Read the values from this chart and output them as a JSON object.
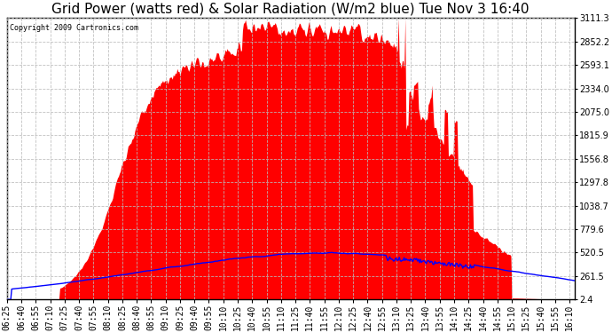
{
  "title": "Grid Power (watts red) & Solar Radiation (W/m2 blue) Tue Nov 3 16:40",
  "copyright_text": "Copyright 2009 Cartronics.com",
  "yticks": [
    2.4,
    261.5,
    520.5,
    779.6,
    1038.7,
    1297.8,
    1556.8,
    1815.9,
    2075.0,
    2334.0,
    2593.1,
    2852.2,
    3111.3
  ],
  "ymin": 2.4,
  "ymax": 3111.3,
  "bg_color": "#ffffff",
  "plot_bg_color": "#ffffff",
  "grid_color": "#bbbbbb",
  "red_color": "#ff0000",
  "blue_color": "#0000ff",
  "title_fontsize": 11,
  "tick_fontsize": 7
}
